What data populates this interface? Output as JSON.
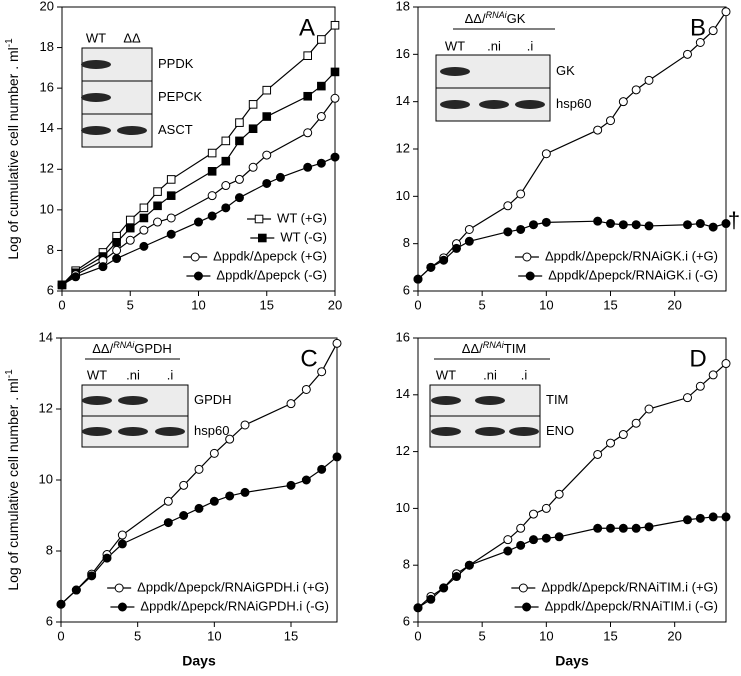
{
  "chart_data": [
    {
      "type": "line",
      "title": "A",
      "ylabel": [
        "Log of cumulative cell number . ml",
        "-1"
      ],
      "xlim": [
        0,
        20
      ],
      "xticks": [
        0,
        5,
        10,
        15,
        20
      ],
      "ylim": [
        6,
        20
      ],
      "yticks": [
        6,
        8,
        10,
        12,
        14,
        16,
        18,
        20
      ],
      "series": [
        {
          "name": "WT (+G)",
          "color": "#000000",
          "marker": "square",
          "fill": "#ffffff",
          "x": [
            0,
            1,
            3,
            4,
            5,
            6,
            7,
            8,
            11,
            12,
            13,
            14,
            15,
            18,
            19,
            20
          ],
          "values": [
            6.3,
            7.0,
            7.9,
            8.7,
            9.5,
            10.1,
            10.9,
            11.5,
            12.8,
            13.4,
            14.3,
            15.2,
            15.9,
            17.6,
            18.4,
            19.1
          ]
        },
        {
          "name": "WT (-G)",
          "color": "#000000",
          "marker": "square",
          "fill": "#000000",
          "x": [
            0,
            1,
            3,
            4,
            5,
            6,
            7,
            8,
            11,
            12,
            13,
            14,
            15,
            18,
            19,
            20
          ],
          "values": [
            6.3,
            6.9,
            7.7,
            8.4,
            9.1,
            9.6,
            10.2,
            10.7,
            11.9,
            12.4,
            13.4,
            14.0,
            14.6,
            15.6,
            16.1,
            16.8
          ]
        },
        {
          "name": "Δppdk/Δpepck (+G)",
          "color": "#000000",
          "marker": "circle",
          "fill": "#ffffff",
          "x": [
            0,
            1,
            3,
            4,
            5,
            6,
            7,
            8,
            11,
            12,
            13,
            14,
            15,
            18,
            19,
            20
          ],
          "values": [
            6.3,
            6.8,
            7.5,
            8.0,
            8.5,
            9.0,
            9.4,
            9.6,
            10.7,
            11.2,
            11.5,
            12.1,
            12.7,
            13.8,
            14.6,
            15.5
          ]
        },
        {
          "name": "Δppdk/Δpepck (-G)",
          "color": "#000000",
          "marker": "circle",
          "fill": "#000000",
          "x": [
            0,
            1,
            3,
            4,
            6,
            8,
            10,
            11,
            12,
            13,
            15,
            16,
            18,
            19,
            20
          ],
          "values": [
            6.3,
            6.7,
            7.2,
            7.6,
            8.2,
            8.8,
            9.4,
            9.7,
            10.1,
            10.6,
            11.3,
            11.6,
            12.1,
            12.3,
            12.6
          ]
        }
      ],
      "inset": {
        "columns": [
          "WT",
          "ΔΔ"
        ],
        "rows": [
          "PPDK",
          "PEPCK",
          "ASCT"
        ]
      }
    },
    {
      "type": "line",
      "title": "B",
      "xlim": [
        0,
        24
      ],
      "xticks": [
        0,
        5,
        10,
        15,
        20
      ],
      "ylim": [
        6,
        18
      ],
      "yticks": [
        6,
        8,
        10,
        12,
        14,
        16,
        18
      ],
      "series": [
        {
          "name": "Δppdk/Δpepck/RNAiGK.i (+G)",
          "color": "#000000",
          "marker": "circle",
          "fill": "#ffffff",
          "x": [
            0,
            1,
            2,
            3,
            4,
            7,
            8,
            10,
            14,
            15,
            16,
            17,
            18,
            21,
            22,
            23,
            24
          ],
          "values": [
            6.5,
            7.0,
            7.4,
            8.0,
            8.6,
            9.6,
            10.1,
            11.8,
            12.8,
            13.2,
            14.0,
            14.5,
            14.9,
            16.0,
            16.5,
            17.0,
            17.8
          ]
        },
        {
          "name": "Δppdk/Δpepck/RNAiGK.i (-G)",
          "color": "#000000",
          "marker": "circle",
          "fill": "#000000",
          "x": [
            0,
            1,
            2,
            3,
            4,
            7,
            8,
            9,
            10,
            14,
            15,
            16,
            17,
            18,
            21,
            22,
            23,
            24
          ],
          "values": [
            6.5,
            7.0,
            7.3,
            7.8,
            8.1,
            8.5,
            8.6,
            8.8,
            8.9,
            8.95,
            8.85,
            8.8,
            8.8,
            8.75,
            8.8,
            8.85,
            8.7,
            8.85
          ]
        }
      ],
      "annotation": "†",
      "inset": {
        "header": [
          "ΔΔ/",
          "RNAi",
          "GK"
        ],
        "columns": [
          "WT",
          ".ni",
          ".i"
        ],
        "rows": [
          "GK",
          "hsp60"
        ]
      }
    },
    {
      "type": "line",
      "title": "C",
      "ylabel": [
        "Log of cumulative cell number . ml",
        "-1"
      ],
      "xlabel": "Days",
      "xlim": [
        0,
        18
      ],
      "xticks": [
        0,
        5,
        10,
        15
      ],
      "ylim": [
        6,
        14
      ],
      "yticks": [
        6,
        8,
        10,
        12,
        14
      ],
      "series": [
        {
          "name": "Δppdk/Δpepck/RNAiGPDH.i (+G)",
          "color": "#000000",
          "marker": "circle",
          "fill": "#ffffff",
          "x": [
            0,
            1,
            2,
            3,
            4,
            7,
            8,
            9,
            10,
            11,
            12,
            15,
            16,
            17,
            18
          ],
          "values": [
            6.5,
            6.9,
            7.35,
            7.9,
            8.45,
            9.4,
            9.85,
            10.3,
            10.75,
            11.15,
            11.55,
            12.15,
            12.55,
            13.05,
            13.85
          ]
        },
        {
          "name": "Δppdk/Δpepck/RNAiGPDH.i (-G)",
          "color": "#000000",
          "marker": "circle",
          "fill": "#000000",
          "x": [
            0,
            1,
            2,
            3,
            4,
            7,
            8,
            9,
            10,
            11,
            12,
            15,
            16,
            17,
            18
          ],
          "values": [
            6.5,
            6.9,
            7.3,
            7.8,
            8.2,
            8.8,
            9.0,
            9.2,
            9.4,
            9.55,
            9.65,
            9.85,
            10.0,
            10.3,
            10.65
          ]
        }
      ],
      "inset": {
        "header": [
          "ΔΔ/",
          "RNAi",
          "GPDH"
        ],
        "columns": [
          "WT",
          ".ni",
          ".i"
        ],
        "rows": [
          "GPDH",
          "hsp60"
        ]
      }
    },
    {
      "type": "line",
      "title": "D",
      "xlabel": "Days",
      "xlim": [
        0,
        24
      ],
      "xticks": [
        0,
        5,
        10,
        15,
        20
      ],
      "ylim": [
        6,
        16
      ],
      "yticks": [
        6,
        8,
        10,
        12,
        14,
        16
      ],
      "series": [
        {
          "name": "Δppdk/Δpepck/RNAiTIM.i (+G)",
          "color": "#000000",
          "marker": "circle",
          "fill": "#ffffff",
          "x": [
            0,
            1,
            2,
            3,
            4,
            7,
            8,
            9,
            10,
            11,
            14,
            15,
            16,
            17,
            18,
            21,
            22,
            23,
            24
          ],
          "values": [
            6.5,
            6.9,
            7.2,
            7.7,
            8.0,
            8.9,
            9.3,
            9.8,
            10.0,
            10.5,
            11.9,
            12.3,
            12.6,
            13.0,
            13.5,
            13.9,
            14.3,
            14.7,
            15.1
          ]
        },
        {
          "name": "Δppdk/Δpepck/RNAiTIM.i (-G)",
          "color": "#000000",
          "marker": "circle",
          "fill": "#000000",
          "x": [
            0,
            1,
            2,
            3,
            4,
            7,
            8,
            9,
            10,
            11,
            14,
            15,
            16,
            17,
            18,
            21,
            22,
            23,
            24
          ],
          "values": [
            6.5,
            6.8,
            7.2,
            7.6,
            8.0,
            8.5,
            8.7,
            8.9,
            8.95,
            9.0,
            9.3,
            9.3,
            9.3,
            9.3,
            9.35,
            9.6,
            9.65,
            9.7,
            9.7
          ]
        }
      ],
      "inset": {
        "header": [
          "ΔΔ/",
          "RNAi",
          "TIM"
        ],
        "columns": [
          "WT",
          ".ni",
          ".i"
        ],
        "rows": [
          "TIM",
          "ENO"
        ]
      }
    }
  ]
}
